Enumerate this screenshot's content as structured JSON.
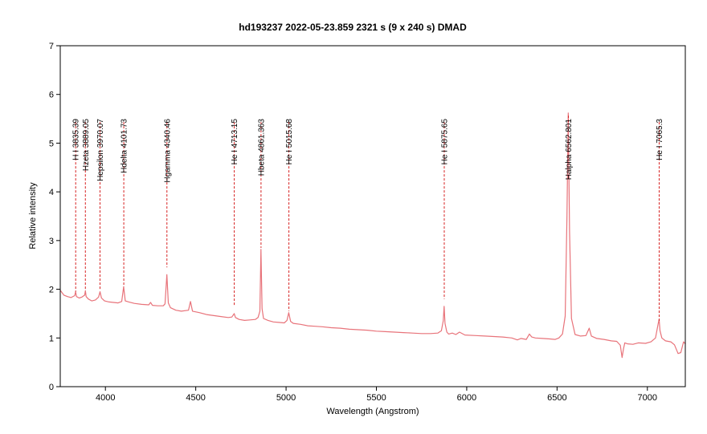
{
  "chart_data": {
    "type": "line",
    "title": "hd193237   2022-05-23.859   2321 s (9 x 240 s)   DMAD",
    "xlabel": "Wavelength (Angstrom)",
    "ylabel": "Relative intensity",
    "xlim": [
      3750,
      7210
    ],
    "ylim": [
      0,
      7
    ],
    "xticks": [
      4000,
      4500,
      5000,
      5500,
      6000,
      6500,
      7000
    ],
    "yticks": [
      0,
      1,
      2,
      3,
      4,
      5,
      6,
      7
    ],
    "grid": false,
    "line_color": "#e8737a",
    "marker_color": "#d62020",
    "series": [
      {
        "x": [
          3750,
          3770,
          3790,
          3810,
          3830,
          3835,
          3840,
          3855,
          3870,
          3885,
          3889,
          3893,
          3905,
          3925,
          3945,
          3962,
          3970,
          3978,
          3995,
          4020,
          4045,
          4070,
          4090,
          4101,
          4110,
          4130,
          4160,
          4200,
          4240,
          4250,
          4260,
          4290,
          4320,
          4330,
          4340,
          4348,
          4360,
          4390,
          4420,
          4460,
          4471,
          4482,
          4520,
          4560,
          4600,
          4640,
          4680,
          4700,
          4713,
          4720,
          4740,
          4770,
          4800,
          4830,
          4845,
          4855,
          4861,
          4867,
          4875,
          4900,
          4930,
          4960,
          4990,
          5005,
          5015,
          5025,
          5040,
          5080,
          5120,
          5160,
          5200,
          5250,
          5300,
          5350,
          5400,
          5450,
          5500,
          5550,
          5600,
          5650,
          5700,
          5750,
          5800,
          5840,
          5860,
          5870,
          5875,
          5880,
          5890,
          5900,
          5920,
          5940,
          5960,
          5990,
          6050,
          6100,
          6150,
          6200,
          6250,
          6280,
          6300,
          6330,
          6347,
          6360,
          6380,
          6420,
          6460,
          6490,
          6510,
          6530,
          6545,
          6555,
          6562,
          6569,
          6580,
          6600,
          6630,
          6660,
          6678,
          6690,
          6720,
          6760,
          6800,
          6830,
          6850,
          6860,
          6868,
          6875,
          6890,
          6920,
          6950,
          6990,
          7020,
          7045,
          7060,
          7065,
          7070,
          7080,
          7100,
          7130,
          7150,
          7170,
          7185,
          7200,
          7210
        ],
        "y": [
          1.98,
          1.88,
          1.85,
          1.83,
          1.87,
          1.95,
          1.85,
          1.82,
          1.84,
          1.88,
          1.97,
          1.85,
          1.8,
          1.76,
          1.78,
          1.84,
          1.95,
          1.82,
          1.76,
          1.74,
          1.73,
          1.72,
          1.75,
          2.05,
          1.76,
          1.74,
          1.71,
          1.69,
          1.68,
          1.73,
          1.67,
          1.66,
          1.66,
          1.7,
          2.3,
          1.72,
          1.62,
          1.57,
          1.55,
          1.57,
          1.75,
          1.55,
          1.52,
          1.48,
          1.46,
          1.44,
          1.42,
          1.43,
          1.5,
          1.42,
          1.38,
          1.36,
          1.37,
          1.38,
          1.42,
          1.55,
          2.82,
          1.6,
          1.4,
          1.36,
          1.33,
          1.32,
          1.31,
          1.36,
          1.52,
          1.34,
          1.3,
          1.28,
          1.25,
          1.24,
          1.23,
          1.21,
          1.2,
          1.18,
          1.17,
          1.16,
          1.14,
          1.13,
          1.12,
          1.11,
          1.1,
          1.09,
          1.09,
          1.1,
          1.15,
          1.35,
          1.65,
          1.3,
          1.12,
          1.08,
          1.1,
          1.07,
          1.12,
          1.06,
          1.05,
          1.04,
          1.03,
          1.02,
          1.0,
          0.96,
          0.99,
          0.97,
          1.08,
          1.02,
          1.0,
          0.99,
          0.98,
          0.97,
          1.0,
          1.08,
          1.45,
          3.5,
          5.62,
          3.2,
          1.4,
          1.07,
          1.04,
          1.05,
          1.2,
          1.04,
          0.99,
          0.97,
          0.94,
          0.93,
          0.85,
          0.6,
          0.78,
          0.9,
          0.88,
          0.87,
          0.9,
          0.89,
          0.92,
          1.0,
          1.3,
          1.38,
          1.15,
          1.0,
          0.94,
          0.92,
          0.86,
          0.68,
          0.7,
          0.92,
          0.88
        ]
      }
    ],
    "line_markers": [
      {
        "wavelength": 3835.39,
        "label": "H I 3835.39",
        "y_bottom": 1.95
      },
      {
        "wavelength": 3889.05,
        "label": "Hzeta 3889.05",
        "y_bottom": 2.0
      },
      {
        "wavelength": 3970.07,
        "label": "Hepsilon 3970.07",
        "y_bottom": 2.0
      },
      {
        "wavelength": 4101.73,
        "label": "Hdelta 4101.73",
        "y_bottom": 2.05
      },
      {
        "wavelength": 4340.46,
        "label": "Hgamma 4340.46",
        "y_bottom": 2.45
      },
      {
        "wavelength": 4713.15,
        "label": "He I 4713.15",
        "y_bottom": 1.65
      },
      {
        "wavelength": 4861.363,
        "label": "Hbeta 4861.363",
        "y_bottom": 2.85
      },
      {
        "wavelength": 5015.68,
        "label": "He I 5015.68",
        "y_bottom": 1.55
      },
      {
        "wavelength": 5875.65,
        "label": "He I 5875.65",
        "y_bottom": 1.8
      },
      {
        "wavelength": 6562.801,
        "label": "Halpha 6562.801",
        "y_bottom": 5.6
      },
      {
        "wavelength": 7065.3,
        "label": "He I 7065.3",
        "y_bottom": 1.35
      }
    ]
  }
}
